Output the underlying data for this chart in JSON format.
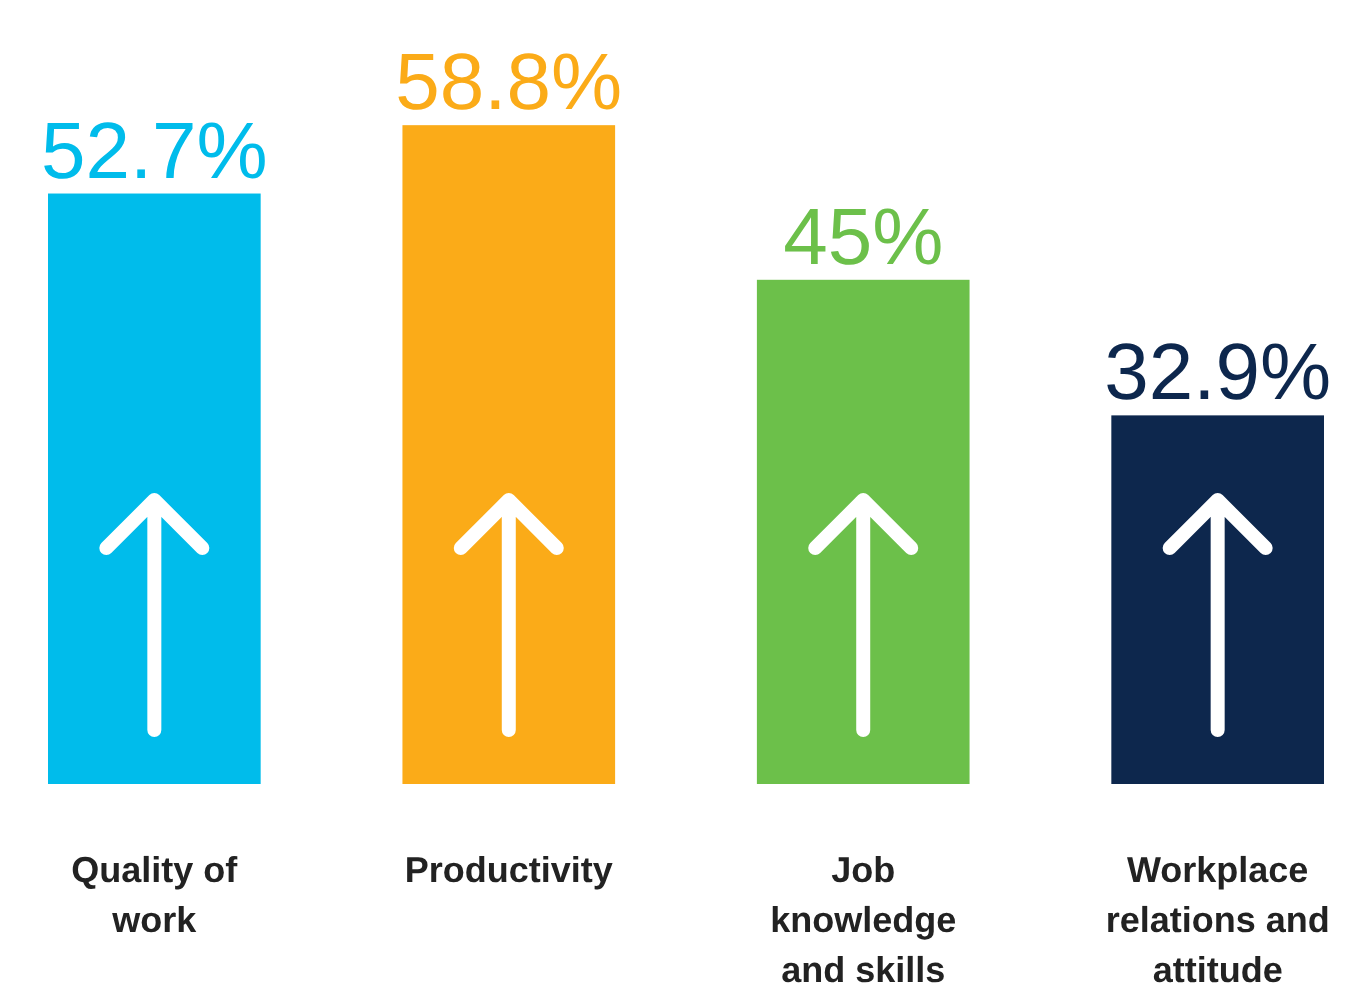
{
  "chart_data": {
    "type": "bar",
    "categories": [
      "Quality of work",
      "Productivity",
      "Job knowledge and skills",
      "Workplace relations and attitude"
    ],
    "values": [
      52.7,
      58.8,
      45,
      32.9
    ],
    "colors": [
      "#00bceb",
      "#fbab18",
      "#6cc04a",
      "#0d274d"
    ],
    "value_labels": [
      "52.7%",
      "58.8%",
      "45%",
      "32.9%"
    ]
  }
}
